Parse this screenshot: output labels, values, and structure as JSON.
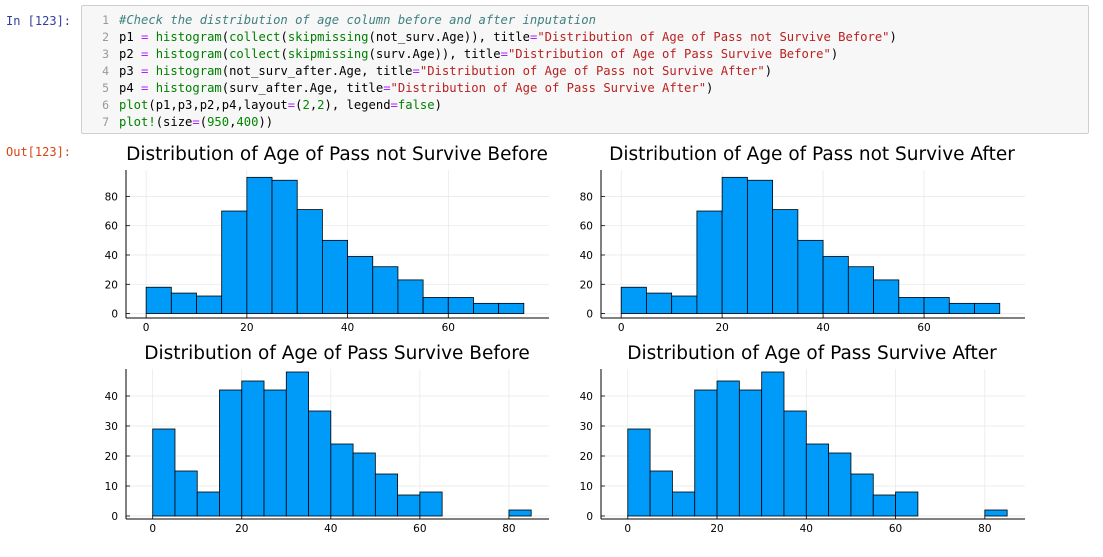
{
  "prompts": {
    "input": "In [123]:",
    "output": "Out[123]:"
  },
  "code_lines": [
    {
      "n": "1",
      "tokens": [
        [
          "comment",
          "#Check the distribution of age column before and after inputation"
        ]
      ]
    },
    {
      "n": "2",
      "tokens": [
        [
          "plain",
          "p1 "
        ],
        [
          "op",
          "="
        ],
        [
          "plain",
          " "
        ],
        [
          "builtin",
          "histogram"
        ],
        [
          "plain",
          "("
        ],
        [
          "builtin",
          "collect"
        ],
        [
          "plain",
          "("
        ],
        [
          "builtin",
          "skipmissing"
        ],
        [
          "plain",
          "(not_surv.Age)), title"
        ],
        [
          "op",
          "="
        ],
        [
          "string",
          "\"Distribution of Age of Pass not Survive Before\""
        ],
        [
          "plain",
          ")"
        ]
      ]
    },
    {
      "n": "3",
      "tokens": [
        [
          "plain",
          "p2 "
        ],
        [
          "op",
          "="
        ],
        [
          "plain",
          " "
        ],
        [
          "builtin",
          "histogram"
        ],
        [
          "plain",
          "("
        ],
        [
          "builtin",
          "collect"
        ],
        [
          "plain",
          "("
        ],
        [
          "builtin",
          "skipmissing"
        ],
        [
          "plain",
          "(surv.Age)), title"
        ],
        [
          "op",
          "="
        ],
        [
          "string",
          "\"Distribution of Age of Pass Survive Before\""
        ],
        [
          "plain",
          ")"
        ]
      ]
    },
    {
      "n": "4",
      "tokens": [
        [
          "plain",
          "p3 "
        ],
        [
          "op",
          "="
        ],
        [
          "plain",
          " "
        ],
        [
          "builtin",
          "histogram"
        ],
        [
          "plain",
          "(not_surv_after.Age, title"
        ],
        [
          "op",
          "="
        ],
        [
          "string",
          "\"Distribution of Age of Pass not Survive After\""
        ],
        [
          "plain",
          ")"
        ]
      ]
    },
    {
      "n": "5",
      "tokens": [
        [
          "plain",
          "p4 "
        ],
        [
          "op",
          "="
        ],
        [
          "plain",
          " "
        ],
        [
          "builtin",
          "histogram"
        ],
        [
          "plain",
          "(surv_after.Age, title"
        ],
        [
          "op",
          "="
        ],
        [
          "string",
          "\"Distribution of Age of Pass Survive After\""
        ],
        [
          "plain",
          ")"
        ]
      ]
    },
    {
      "n": "6",
      "tokens": [
        [
          "builtin",
          "plot"
        ],
        [
          "plain",
          "(p1,p3,p2,p4,layout"
        ],
        [
          "op",
          "="
        ],
        [
          "plain",
          "("
        ],
        [
          "number",
          "2"
        ],
        [
          "plain",
          ","
        ],
        [
          "number",
          "2"
        ],
        [
          "plain",
          "), legend"
        ],
        [
          "op",
          "="
        ],
        [
          "builtin",
          "false"
        ],
        [
          "plain",
          ")"
        ]
      ]
    },
    {
      "n": "7",
      "tokens": [
        [
          "builtin",
          "plot!"
        ],
        [
          "plain",
          "(size"
        ],
        [
          "op",
          "="
        ],
        [
          "plain",
          "("
        ],
        [
          "number",
          "950"
        ],
        [
          "plain",
          ","
        ],
        [
          "number",
          "400"
        ],
        [
          "plain",
          "))"
        ]
      ]
    }
  ],
  "chart_data": [
    {
      "type": "bar",
      "title": "Distribution of Age of Pass not Survive Before",
      "bin_edges": [
        0,
        5,
        10,
        15,
        20,
        25,
        30,
        35,
        40,
        45,
        50,
        55,
        60,
        65,
        70,
        75
      ],
      "values": [
        18,
        14,
        12,
        70,
        93,
        91,
        71,
        50,
        39,
        32,
        23,
        11,
        11,
        7,
        7
      ],
      "xlim": [
        -4,
        80
      ],
      "ylim": [
        -3,
        98
      ],
      "xticks": [
        0,
        20,
        40,
        60
      ],
      "yticks": [
        0,
        20,
        40,
        60,
        80
      ],
      "color": "#009AF9",
      "grid": true,
      "legend": false
    },
    {
      "type": "bar",
      "title": "Distribution of Age of Pass not Survive After",
      "bin_edges": [
        0,
        5,
        10,
        15,
        20,
        25,
        30,
        35,
        40,
        45,
        50,
        55,
        60,
        65,
        70,
        75
      ],
      "values": [
        18,
        14,
        12,
        70,
        93,
        91,
        71,
        50,
        39,
        32,
        23,
        11,
        11,
        7,
        7
      ],
      "xlim": [
        -4,
        80
      ],
      "ylim": [
        -3,
        98
      ],
      "xticks": [
        0,
        20,
        40,
        60
      ],
      "yticks": [
        0,
        20,
        40,
        60,
        80
      ],
      "color": "#009AF9",
      "grid": true,
      "legend": false
    },
    {
      "type": "bar",
      "title": "Distribution of Age of Pass Survive Before",
      "bin_edges": [
        0,
        5,
        10,
        15,
        20,
        25,
        30,
        35,
        40,
        45,
        50,
        55,
        60,
        65,
        70,
        75,
        80,
        85
      ],
      "values": [
        29,
        15,
        8,
        42,
        45,
        42,
        48,
        35,
        24,
        21,
        14,
        7,
        8,
        0,
        0,
        0,
        2
      ],
      "xlim": [
        -6,
        89
      ],
      "ylim": [
        -1,
        49
      ],
      "xticks": [
        0,
        20,
        40,
        60,
        80
      ],
      "yticks": [
        0,
        10,
        20,
        30,
        40
      ],
      "color": "#009AF9",
      "grid": true,
      "legend": false
    },
    {
      "type": "bar",
      "title": "Distribution of Age of Pass Survive After",
      "bin_edges": [
        0,
        5,
        10,
        15,
        20,
        25,
        30,
        35,
        40,
        45,
        50,
        55,
        60,
        65,
        70,
        75,
        80,
        85
      ],
      "values": [
        29,
        15,
        8,
        42,
        45,
        42,
        48,
        35,
        24,
        21,
        14,
        7,
        8,
        0,
        0,
        0,
        2
      ],
      "xlim": [
        -6,
        89
      ],
      "ylim": [
        -1,
        49
      ],
      "xticks": [
        0,
        20,
        40,
        60,
        80
      ],
      "yticks": [
        0,
        10,
        20,
        30,
        40
      ],
      "color": "#009AF9",
      "grid": true,
      "legend": false
    }
  ]
}
